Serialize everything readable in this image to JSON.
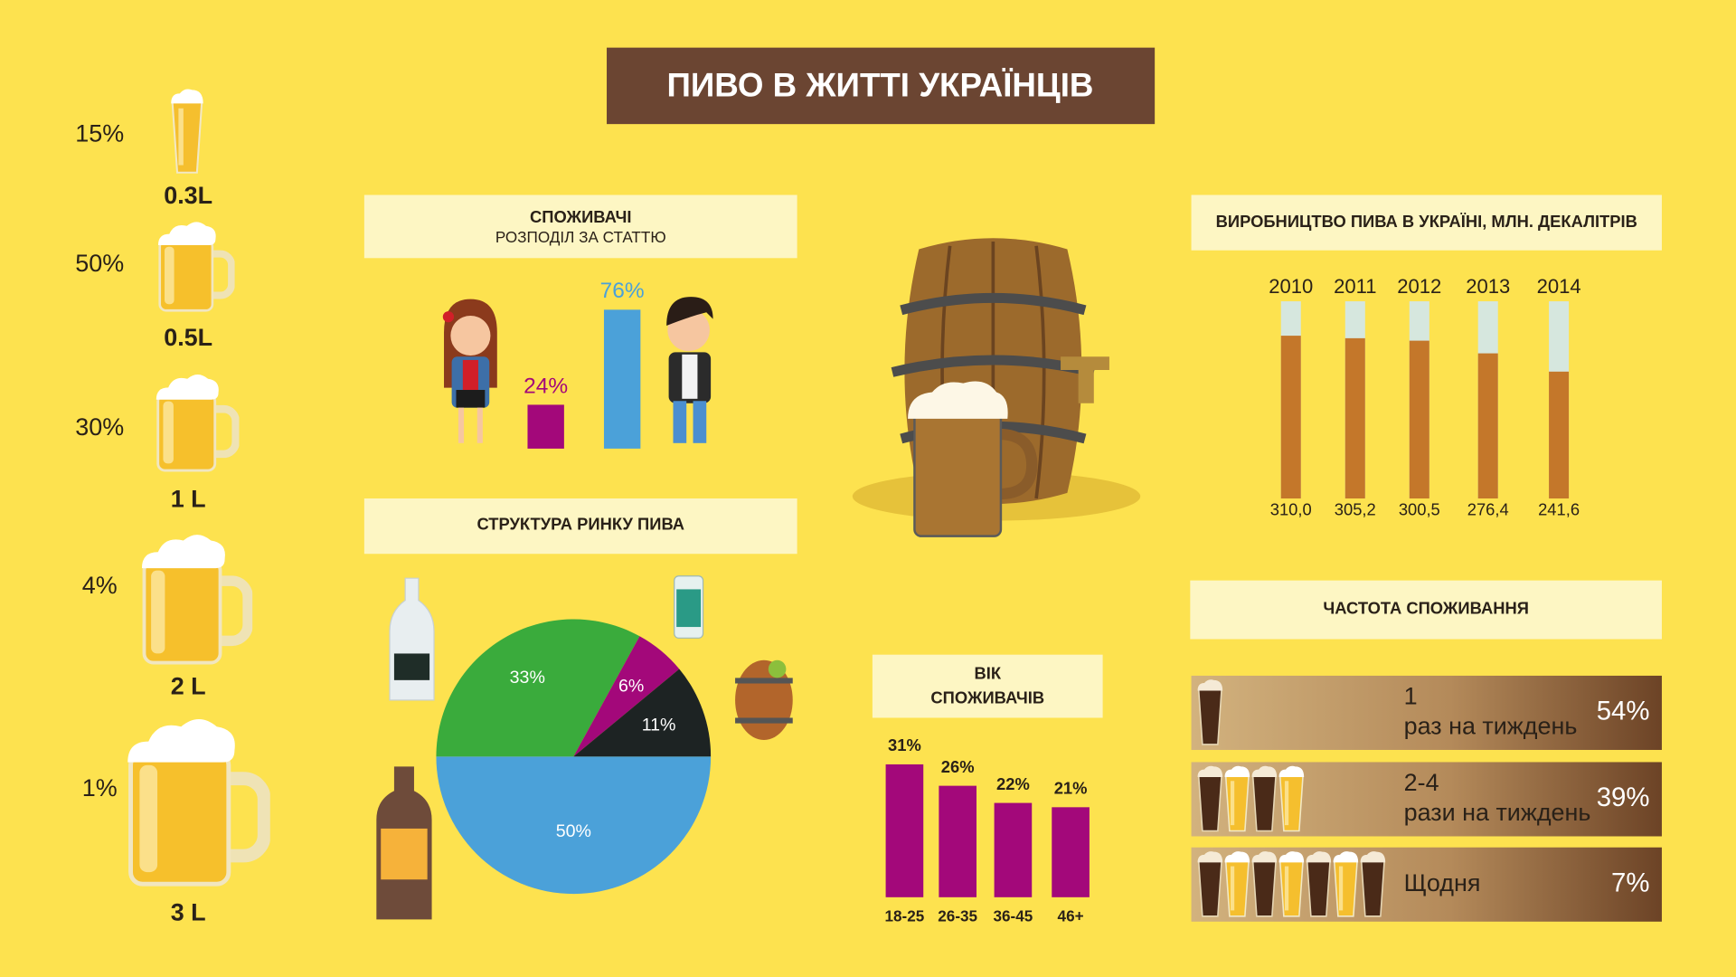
{
  "title": "ПИВО В ЖИТТІ УКРАЇНЦІВ",
  "mugs": [
    {
      "share": "15%",
      "size": "0.3L"
    },
    {
      "share": "50%",
      "size": "0.5L"
    },
    {
      "share": "30%",
      "size": "1 L"
    },
    {
      "share": "4%",
      "size": "2 L"
    },
    {
      "share": "1%",
      "size": "3 L"
    }
  ],
  "chart_data": [
    {
      "type": "bar",
      "title": "СПОЖИВАЧІ",
      "subtitle": "РОЗПОДІЛ ЗА СТАТТЮ",
      "values": [
        24,
        76
      ],
      "value_labels": [
        "24%",
        "76%"
      ],
      "colors": [
        "#a3087a",
        "#4ba1d9"
      ]
    },
    {
      "type": "pie",
      "title": "СТРУКТУРА РИНКУ ПИВА",
      "values": [
        33,
        6,
        11,
        50
      ],
      "value_labels": [
        "33%",
        "6%",
        "11%",
        "50%"
      ],
      "colors": [
        "#3aab3c",
        "#a3087a",
        "#1d2323",
        "#4ba1d9"
      ]
    },
    {
      "type": "bar",
      "title": "ВІК",
      "subtitle": "СПОЖИВАЧІВ",
      "categories": [
        "18-25",
        "26-35",
        "36-45",
        "46+"
      ],
      "values": [
        31,
        26,
        22,
        21
      ],
      "value_labels": [
        "31%",
        "26%",
        "22%",
        "21%"
      ],
      "color": "#a3087a"
    },
    {
      "type": "bar",
      "title": "ВИРОБНИЦТВО ПИВА В УКРАЇНІ, МЛН. ДЕКАЛІТРІВ",
      "categories": [
        "2010",
        "2011",
        "2012",
        "2013",
        "2014"
      ],
      "values": [
        310.0,
        305.2,
        300.5,
        276.4,
        241.6
      ],
      "value_labels": [
        "310,0",
        "305,2",
        "300,5",
        "276,4",
        "241,6"
      ],
      "color": "#c4772a",
      "track_color": "#d6e7de"
    },
    {
      "type": "rows",
      "title": "ЧАСТОТА СПОЖИВАННЯ",
      "categories": [
        [
          "1",
          "раз на тиждень"
        ],
        [
          "2-4",
          "рази на тиждень"
        ],
        [
          "Щодня"
        ]
      ],
      "values": [
        54,
        39,
        7
      ],
      "value_labels": [
        "54%",
        "39%",
        "7%"
      ]
    }
  ]
}
